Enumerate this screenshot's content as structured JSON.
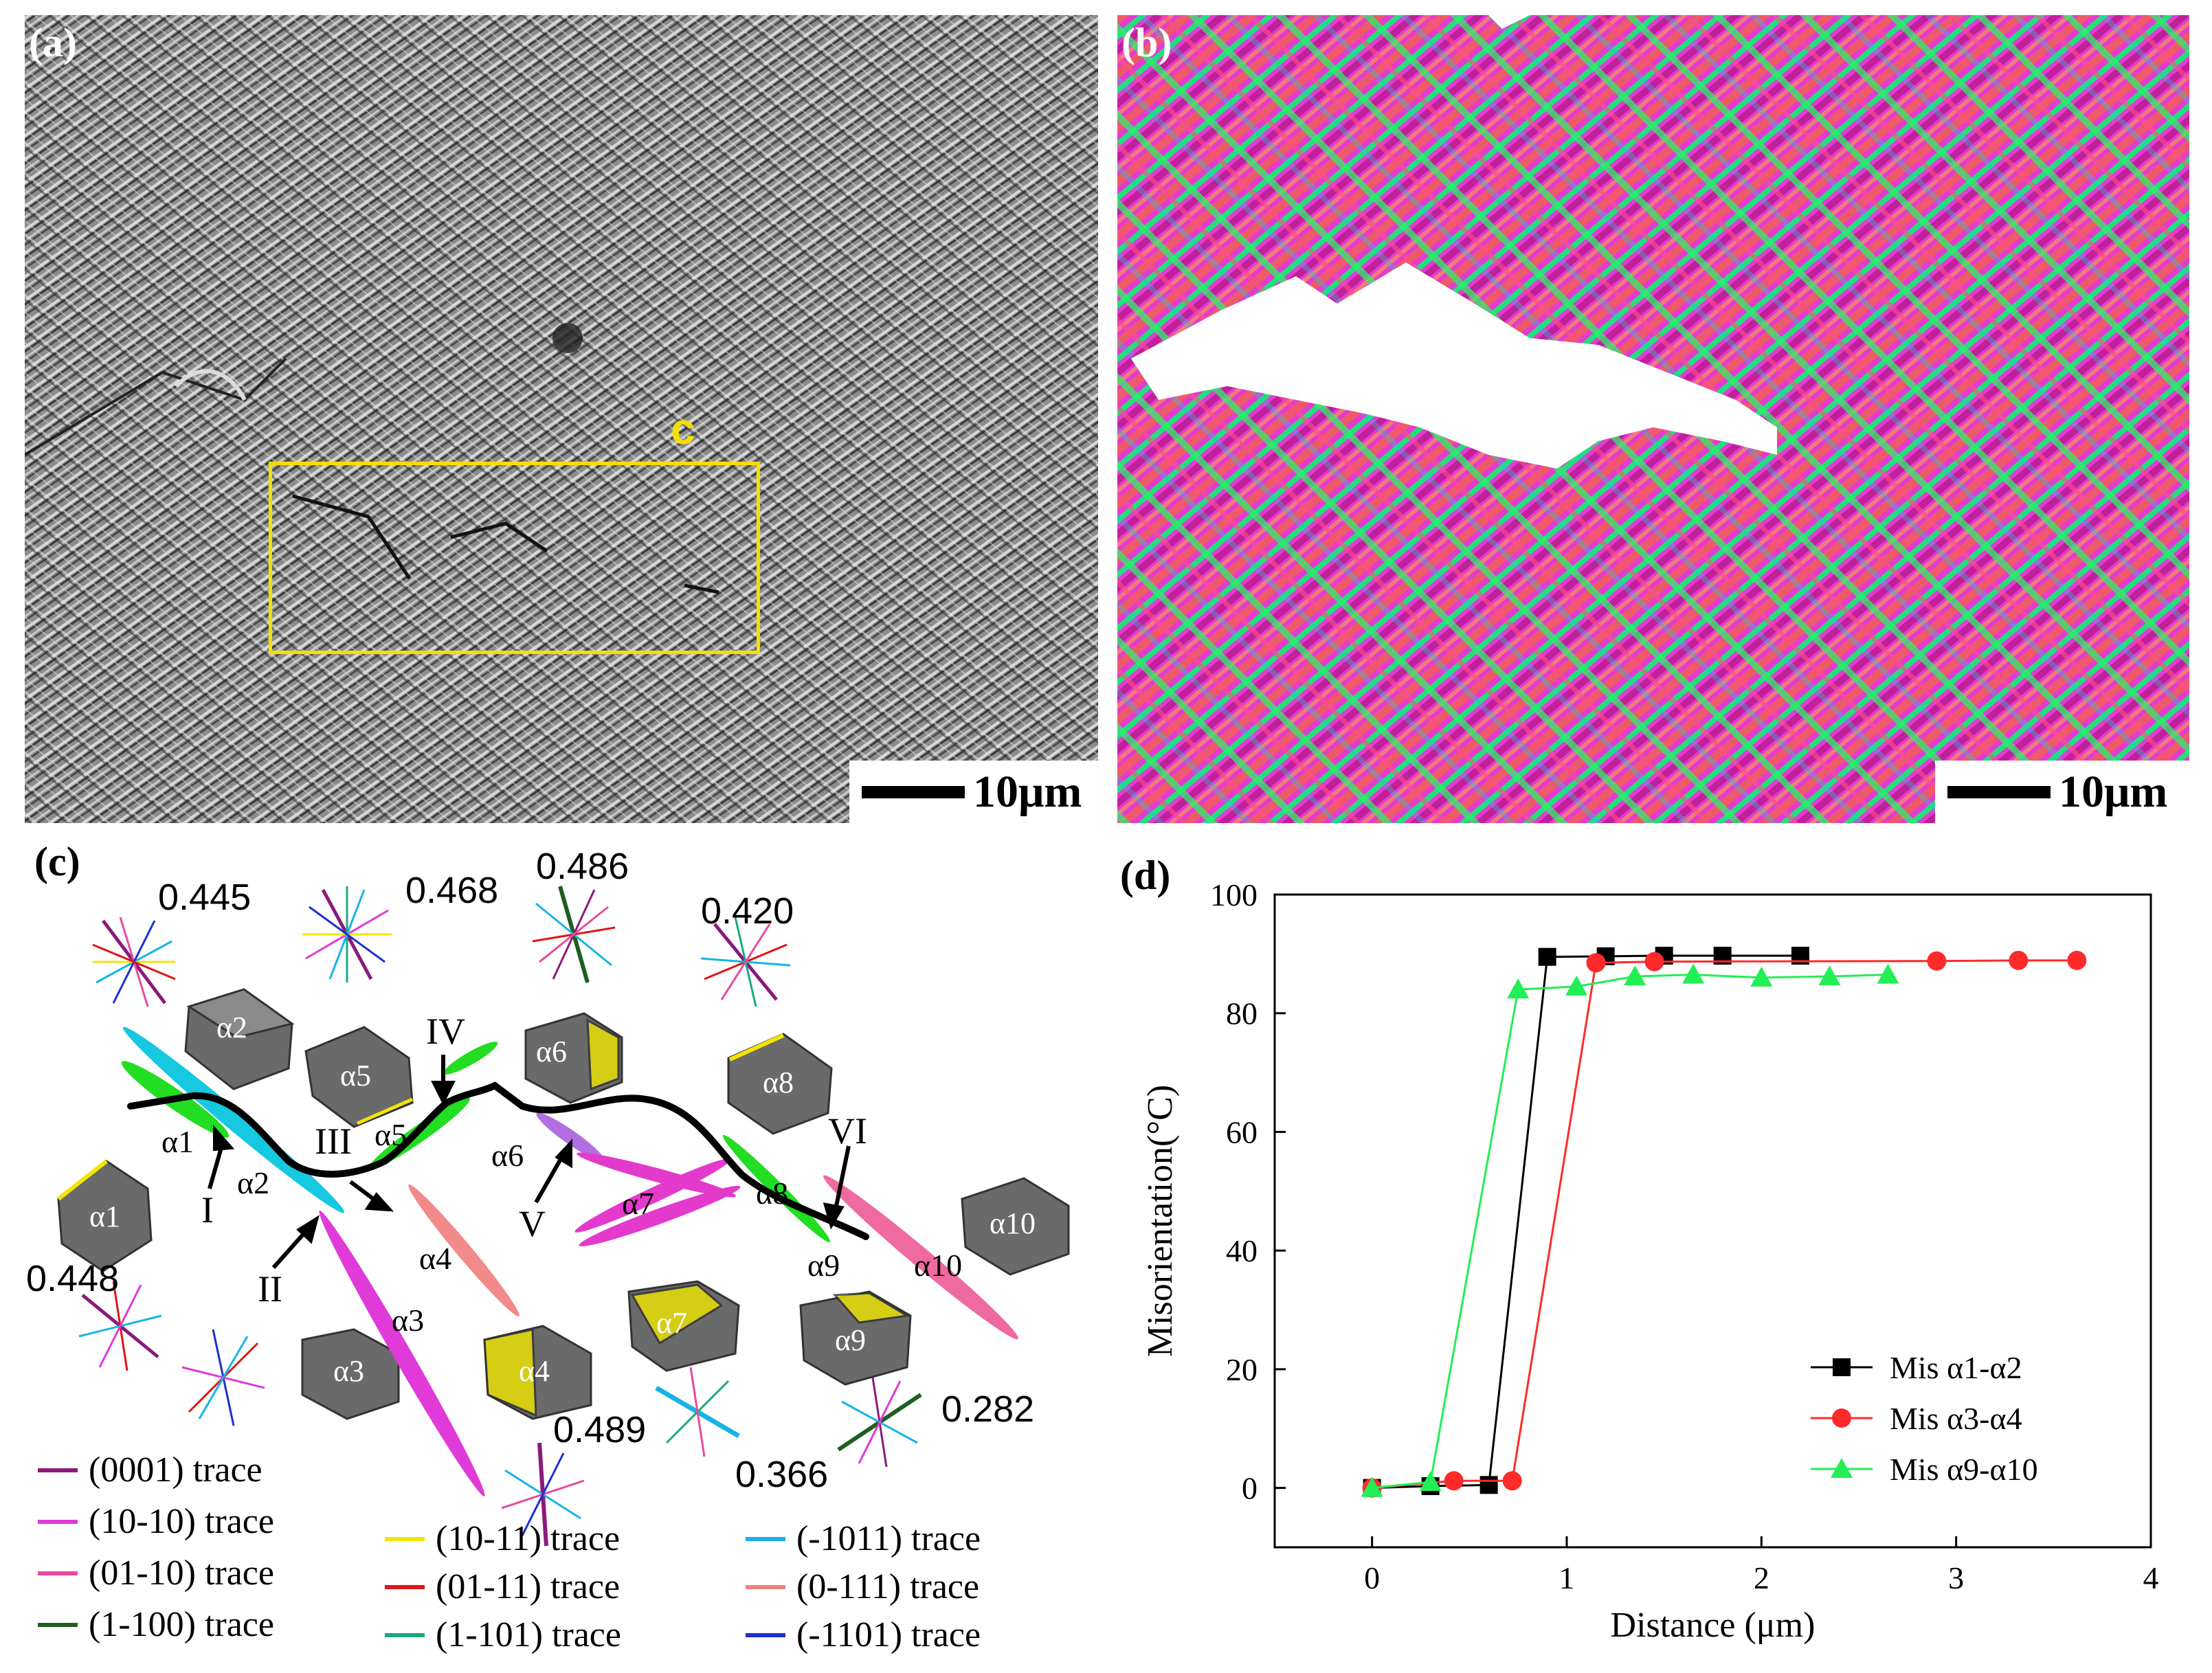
{
  "panel_a": {
    "label": "(a)",
    "region_label": "c",
    "scale_text": "10μm"
  },
  "panel_b": {
    "label": "(b)",
    "scale_text": "10μm"
  },
  "panel_c": {
    "label": "(c)",
    "numbers": [
      "0.445",
      "0.468",
      "0.486",
      "0.420",
      "0.448",
      "0.489",
      "0.366",
      "0.282"
    ],
    "grain_labels": [
      "α1",
      "α2",
      "α3",
      "α4",
      "α5",
      "α6",
      "α7",
      "α8",
      "α9",
      "α10"
    ],
    "points": [
      "I",
      "II",
      "III",
      "IV",
      "V",
      "VI"
    ],
    "legend": [
      {
        "label": "(0001) trace",
        "color": "#8b1a7a"
      },
      {
        "label": "(10-10) trace",
        "color": "#e03ad8"
      },
      {
        "label": "(01-10) trace",
        "color": "#e84a9e"
      },
      {
        "label": "(1-100) trace",
        "color": "#1f5e1f"
      },
      {
        "label": "(10-11) trace",
        "color": "#f2e600"
      },
      {
        "label": "(01-11) trace",
        "color": "#e01414"
      },
      {
        "label": "(1-101) trace",
        "color": "#1aa884"
      },
      {
        "label": "(-1011) trace",
        "color": "#16b4e6"
      },
      {
        "label": "(0-111) trace",
        "color": "#f08080"
      },
      {
        "label": "(-1101) trace",
        "color": "#1c2fd0"
      }
    ]
  },
  "panel_d": {
    "label": "(d)"
  },
  "chart_data": {
    "type": "line",
    "xlabel": "Distance (μm)",
    "ylabel": "Misorientation(°C)",
    "xlim": [
      -0.5,
      4
    ],
    "ylim": [
      -10,
      100
    ],
    "xticks": [
      0,
      1,
      2,
      3,
      4
    ],
    "yticks": [
      0,
      20,
      40,
      60,
      80,
      100
    ],
    "legend_position": "bottom-right",
    "series": [
      {
        "name": "Mis α1-α2",
        "color": "#000000",
        "marker": "square",
        "x": [
          0,
          0.3,
          0.6,
          0.9,
          1.2,
          1.5,
          1.8,
          2.2
        ],
        "y": [
          0,
          0.3,
          0.5,
          89.5,
          89.6,
          89.7,
          89.7,
          89.7
        ]
      },
      {
        "name": "Mis α3-α4",
        "color": "#ff2a2a",
        "marker": "circle",
        "x": [
          0,
          0.42,
          0.72,
          1.15,
          1.45,
          2.9,
          3.32,
          3.62
        ],
        "y": [
          0,
          1.2,
          1.2,
          88.5,
          88.7,
          88.8,
          88.9,
          88.9
        ]
      },
      {
        "name": "Mis α9-α10",
        "color": "#22ee55",
        "marker": "triangle",
        "x": [
          0,
          0.3,
          0.75,
          1.05,
          1.35,
          1.65,
          2.0,
          2.35,
          2.65
        ],
        "y": [
          0,
          1.0,
          84,
          84.5,
          86.2,
          86.5,
          86,
          86.2,
          86.5
        ]
      }
    ]
  }
}
